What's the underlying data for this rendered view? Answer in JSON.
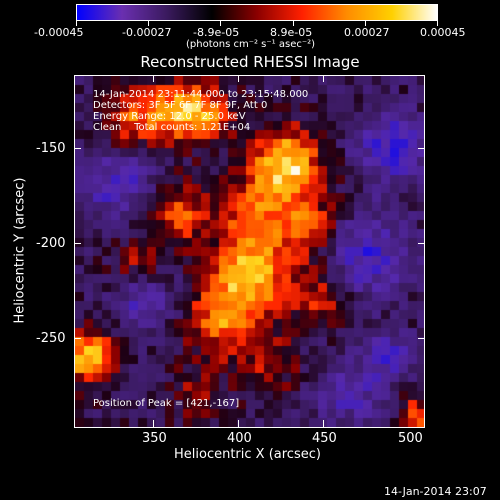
{
  "colorbar": {
    "ticks": [
      "-0.00045",
      "-0.00027",
      "-8.9e-05",
      "8.9e-05",
      "0.00027",
      "0.00045"
    ],
    "units_label": "(photons cm⁻² s⁻¹ asec⁻²)",
    "colors": [
      "#0000ff",
      "#6a2fb0",
      "#3a1a5e",
      "#000000",
      "#8b0000",
      "#ff2000",
      "#ff8c00",
      "#ffd000",
      "#ffffff"
    ]
  },
  "title": "Reconstructed RHESSI Image",
  "overlay": {
    "line1": "14-Jan-2014 23:11:44.000 to 23:15:48.000",
    "line2": "Detectors: 3F 5F 6F 7F 8F 9F, Att 0",
    "line3": "Energy Range: 12.0 - 25.0 keV",
    "line4": "Clean    Total counts: 1.21E+04",
    "peak": "Position of Peak = [421,-167]"
  },
  "x_axis": {
    "label": "Heliocentric X (arcsec)",
    "ticks": [
      "350",
      "400",
      "450",
      "500"
    ]
  },
  "y_axis": {
    "label": "Heliocentric Y (arcsec)",
    "ticks": [
      "-150",
      "-200",
      "-250"
    ]
  },
  "footer_timestamp": "14-Jan-2014 23:07"
}
